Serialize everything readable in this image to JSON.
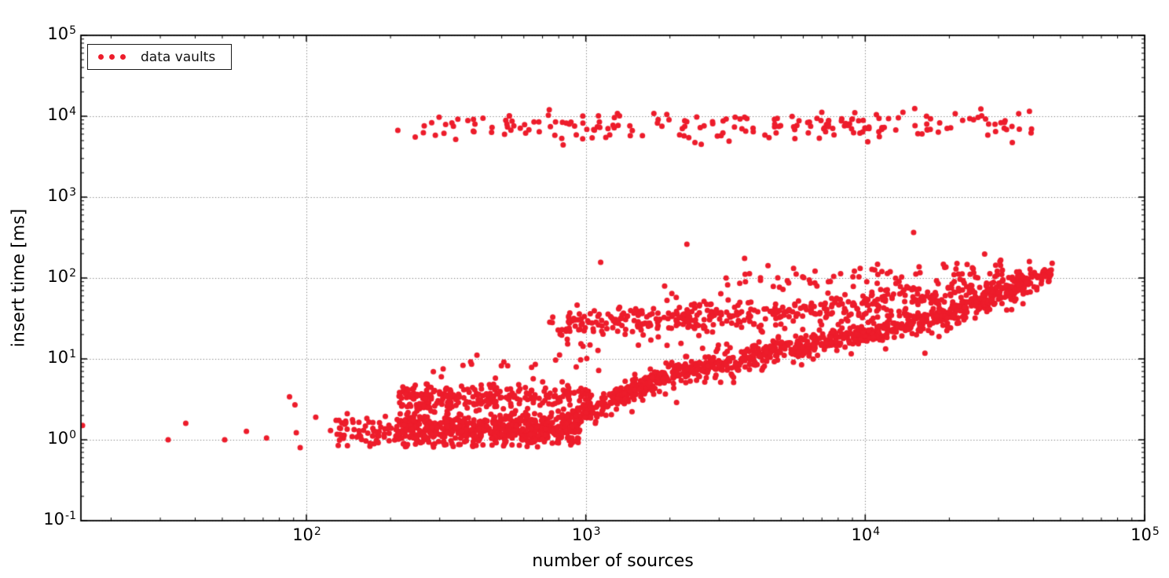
{
  "chart_data": {
    "type": "scatter",
    "title": "",
    "xlabel": "number of sources",
    "ylabel": "insert time [ms]",
    "legend": [
      "data vaults"
    ],
    "legend_position": "upper left",
    "x_scale": "log",
    "y_scale": "log",
    "xlim_log10": [
      1.193,
      5
    ],
    "ylim_log10": [
      -1,
      5
    ],
    "tick_base": "10",
    "x_tick_exponents": [
      2,
      3,
      4,
      5
    ],
    "y_tick_exponents": [
      -1,
      0,
      1,
      2,
      3,
      4,
      5
    ],
    "grid": "dotted-major-both-axes",
    "background": "#ffffff",
    "frame_color": "#000000",
    "grid_color": "#7a7a7a",
    "marker_color": "#ed1c2b",
    "marker_diameter_px": 7,
    "point_clusters": [
      {
        "name": "flat-cloud-left",
        "count": 60,
        "seed": 101,
        "logx": [
          2.1,
          2.34
        ],
        "centers": [
          [
            2.1,
            0.1
          ],
          [
            2.34,
            0.11
          ]
        ],
        "sigma": 0.12,
        "clip": [
          -0.1,
          0.42
        ]
      },
      {
        "name": "flat-cloud-low",
        "count": 640,
        "seed": 102,
        "logx": [
          2.32,
          2.98
        ],
        "centers": [
          [
            2.32,
            0.11
          ],
          [
            2.98,
            0.14
          ]
        ],
        "sigma": 0.1,
        "clip": [
          -0.09,
          0.4
        ]
      },
      {
        "name": "flat-cloud-high",
        "count": 270,
        "seed": 103,
        "logx": [
          2.33,
          3.02
        ],
        "centers": [
          [
            2.33,
            0.5
          ],
          [
            3.02,
            0.53
          ]
        ],
        "sigma": 0.085,
        "clip": [
          0.3,
          0.73
        ]
      },
      {
        "name": "blob-halo",
        "count": 20,
        "seed": 104,
        "logx": [
          2.45,
          3.05
        ],
        "centers": [
          [
            2.45,
            0.8
          ],
          [
            3.05,
            0.86
          ]
        ],
        "sigma": 0.12,
        "clip": [
          0.6,
          1.05
        ]
      },
      {
        "name": "main-rising-band",
        "count": 950,
        "seed": 105,
        "logx": [
          2.95,
          4.67
        ],
        "centers": [
          [
            2.95,
            0.22
          ],
          [
            3.1,
            0.5
          ],
          [
            3.3,
            0.8
          ],
          [
            3.6,
            1.05
          ],
          [
            4.0,
            1.3
          ],
          [
            4.3,
            1.55
          ],
          [
            4.67,
            2.06
          ]
        ],
        "sigma": 0.065,
        "clip": null
      },
      {
        "name": "main-rising-band-spread",
        "count": 130,
        "seed": 106,
        "logx": [
          2.95,
          4.6
        ],
        "centers": [
          [
            2.95,
            0.22
          ],
          [
            3.1,
            0.5
          ],
          [
            3.3,
            0.8
          ],
          [
            3.6,
            1.05
          ],
          [
            4.0,
            1.3
          ],
          [
            4.3,
            1.55
          ],
          [
            4.67,
            2.06
          ]
        ],
        "sigma": 0.16,
        "clip": null
      },
      {
        "name": "middle-band",
        "count": 380,
        "seed": 107,
        "logx": [
          2.87,
          4.55
        ],
        "centers": [
          [
            2.87,
            1.43
          ],
          [
            3.2,
            1.47
          ],
          [
            3.6,
            1.56
          ],
          [
            4.0,
            1.68
          ],
          [
            4.3,
            1.82
          ],
          [
            4.55,
            1.95
          ]
        ],
        "sigma": 0.08,
        "clip": null
      },
      {
        "name": "middle-band-spread",
        "count": 110,
        "seed": 108,
        "logx": [
          2.87,
          4.45
        ],
        "centers": [
          [
            2.87,
            1.43
          ],
          [
            3.2,
            1.47
          ],
          [
            3.6,
            1.56
          ],
          [
            4.0,
            1.68
          ],
          [
            4.3,
            1.82
          ],
          [
            4.55,
            1.95
          ]
        ],
        "sigma": 0.17,
        "clip": null
      },
      {
        "name": "upper-scatter-100ms",
        "count": 60,
        "seed": 109,
        "logx": [
          3.5,
          4.62
        ],
        "centers": [
          [
            3.5,
            1.98
          ],
          [
            4.62,
            2.12
          ]
        ],
        "sigma": 0.07,
        "clip": null
      },
      {
        "name": "top-horizontal-band",
        "count": 210,
        "seed": 110,
        "logx": [
          2.31,
          4.61
        ],
        "centers": [
          [
            2.31,
            3.87
          ],
          [
            4.61,
            3.87
          ]
        ],
        "sigma": 0.1,
        "clip": [
          3.64,
          4.1
        ]
      }
    ],
    "singular_points": [
      [
        15.8,
        1.5
      ],
      [
        32,
        1.0
      ],
      [
        37,
        1.6
      ],
      [
        51,
        1.0
      ],
      [
        61,
        1.27
      ],
      [
        72,
        1.05
      ],
      [
        87,
        3.4
      ],
      [
        91,
        2.7
      ],
      [
        92,
        1.22
      ],
      [
        95,
        0.8
      ],
      [
        108,
        1.9
      ],
      [
        122,
        1.3
      ],
      [
        130,
        0.85
      ],
      [
        140,
        2.1
      ],
      [
        740,
        12000
      ],
      [
        38700,
        11500
      ],
      [
        1130,
        156
      ],
      [
        2300,
        262
      ],
      [
        3700,
        175
      ],
      [
        14900,
        365
      ]
    ]
  }
}
